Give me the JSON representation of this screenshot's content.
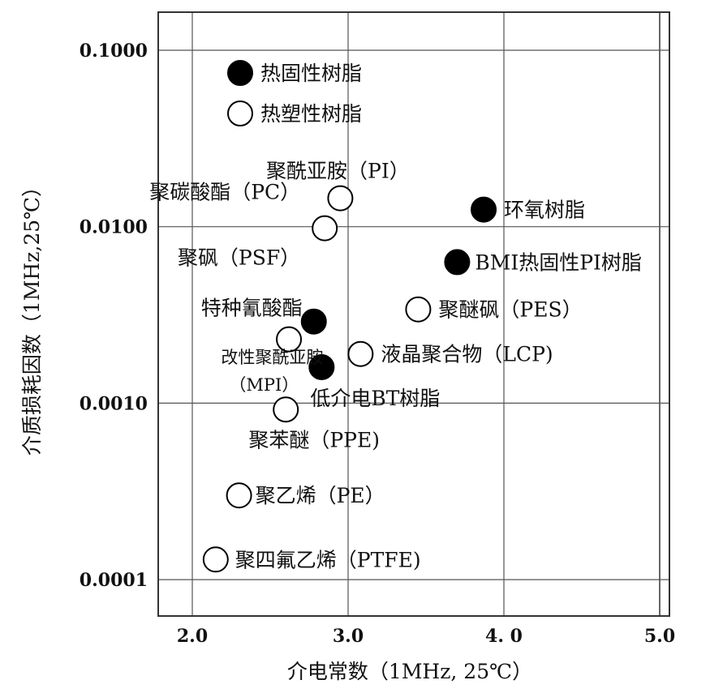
{
  "chart_data": {
    "type": "scatter",
    "xlabel": "介电常数（1MHz, 25℃）",
    "ylabel": "介质损耗因数（1MHz,25℃）",
    "xlim": [
      1.8,
      5.2
    ],
    "ylim": [
      0.0001,
      0.15
    ],
    "y_scale": "log",
    "x_ticks": [
      "2.0",
      "3.0",
      "4. 0",
      "5.0"
    ],
    "y_ticks": [
      "0.1000",
      "0.0100",
      "0.0010",
      "0.0001"
    ],
    "grid": true,
    "legend": [
      {
        "label": "热固性树脂",
        "filled": true
      },
      {
        "label": "热塑性树脂",
        "filled": false
      }
    ],
    "points": [
      {
        "label": "聚酰亚胺（PI）",
        "x": 2.95,
        "y": 0.0145,
        "filled": false
      },
      {
        "label": "聚碳酸酯（PC）",
        "x": 2.85,
        "y": 0.0098,
        "filled": false
      },
      {
        "label": "聚砜（PSF）",
        "x": 2.85,
        "y": 0.0098,
        "filled": false
      },
      {
        "label": "环氧树脂",
        "x": 3.87,
        "y": 0.0125,
        "filled": true
      },
      {
        "label": "BMI热固性PI树脂",
        "x": 3.7,
        "y": 0.0063,
        "filled": true
      },
      {
        "label": "特种氰酸酯",
        "x": 2.78,
        "y": 0.0029,
        "filled": true
      },
      {
        "label": "聚醚砜（PES）",
        "x": 3.45,
        "y": 0.0034,
        "filled": false
      },
      {
        "label": "",
        "x": 2.62,
        "y": 0.0023,
        "filled": false
      },
      {
        "label": "改性聚酰亚胺",
        "x": 2.83,
        "y": 0.0016,
        "filled": true
      },
      {
        "label": "液晶聚合物（LCP)",
        "x": 3.08,
        "y": 0.0019,
        "filled": false
      },
      {
        "label": "（MPI）",
        "x": 2.83,
        "y": 0.0016,
        "filled": true
      },
      {
        "label": "低介电BT树脂",
        "x": 2.83,
        "y": 0.0016,
        "filled": true
      },
      {
        "label": "聚苯醚（PPE)",
        "x": 2.6,
        "y": 0.00092,
        "filled": false
      },
      {
        "label": "聚乙烯（PE）",
        "x": 2.3,
        "y": 0.0003,
        "filled": false
      },
      {
        "label": "聚四氟乙烯（PTFE)",
        "x": 2.15,
        "y": 0.00013,
        "filled": false
      }
    ]
  }
}
